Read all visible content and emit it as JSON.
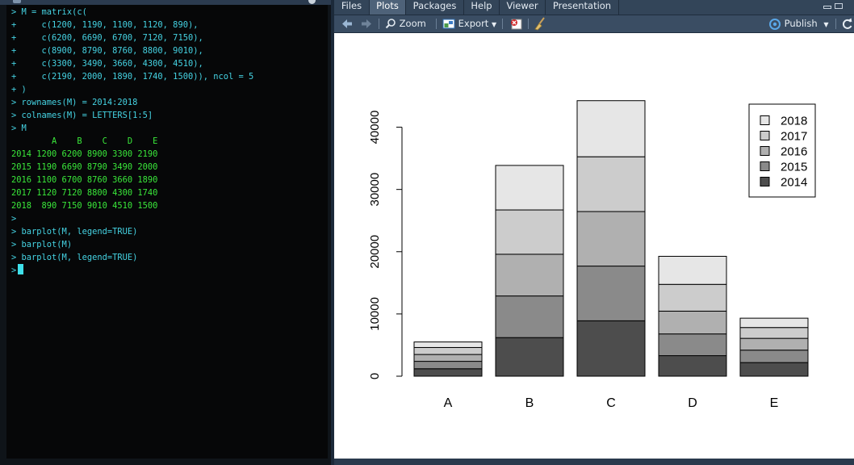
{
  "console": {
    "lines": [
      {
        "kind": "cmd",
        "text": "> M = matrix(c("
      },
      {
        "kind": "cmd",
        "text": "+     c(1200, 1190, 1100, 1120, 890),"
      },
      {
        "kind": "cmd",
        "text": "+     c(6200, 6690, 6700, 7120, 7150),"
      },
      {
        "kind": "cmd",
        "text": "+     c(8900, 8790, 8760, 8800, 9010),"
      },
      {
        "kind": "cmd",
        "text": "+     c(3300, 3490, 3660, 4300, 4510),"
      },
      {
        "kind": "cmd",
        "text": "+     c(2190, 2000, 1890, 1740, 1500)), ncol = 5"
      },
      {
        "kind": "cmd",
        "text": "+ )"
      },
      {
        "kind": "cmd",
        "text": "> rownames(M) = 2014:2018"
      },
      {
        "kind": "cmd",
        "text": "> colnames(M) = LETTERS[1:5]"
      },
      {
        "kind": "cmd",
        "text": "> M"
      },
      {
        "kind": "out",
        "text": "        A    B    C    D    E"
      },
      {
        "kind": "out",
        "text": "2014 1200 6200 8900 3300 2190"
      },
      {
        "kind": "out",
        "text": "2015 1190 6690 8790 3490 2000"
      },
      {
        "kind": "out",
        "text": "2016 1100 6700 8760 3660 1890"
      },
      {
        "kind": "out",
        "text": "2017 1120 7120 8800 4300 1740"
      },
      {
        "kind": "out",
        "text": "2018  890 7150 9010 4510 1500"
      },
      {
        "kind": "cmd",
        "text": ">"
      },
      {
        "kind": "cmd",
        "text": "> barplot(M, legend=TRUE)"
      },
      {
        "kind": "cmd",
        "text": "> barplot(M)"
      },
      {
        "kind": "cmd",
        "text": "> barplot(M, legend=TRUE)"
      }
    ],
    "prompt": ">"
  },
  "tabs": [
    "Files",
    "Plots",
    "Packages",
    "Help",
    "Viewer",
    "Presentation"
  ],
  "active_tab": "Plots",
  "toolbar": {
    "zoom_label": "Zoom",
    "export_label": "Export",
    "publish_label": "Publish"
  },
  "colors": {
    "console_bg": "#060708",
    "console_cmd": "#45d3e3",
    "console_out": "#3ae83a",
    "series": [
      "#4d4d4d",
      "#8a8a8a",
      "#b0b0b0",
      "#cccccc",
      "#e6e6e6"
    ]
  },
  "chart_data": {
    "type": "bar",
    "stacked": true,
    "categories": [
      "A",
      "B",
      "C",
      "D",
      "E"
    ],
    "series": [
      {
        "name": "2014",
        "values": [
          1200,
          6200,
          8900,
          3300,
          2190
        ]
      },
      {
        "name": "2015",
        "values": [
          1190,
          6690,
          8790,
          3490,
          2000
        ]
      },
      {
        "name": "2016",
        "values": [
          1100,
          6700,
          8760,
          3660,
          1890
        ]
      },
      {
        "name": "2017",
        "values": [
          1120,
          7120,
          8800,
          4300,
          1740
        ]
      },
      {
        "name": "2018",
        "values": [
          890,
          7150,
          9010,
          4510,
          1500
        ]
      }
    ],
    "yticks": [
      0,
      10000,
      20000,
      30000,
      40000
    ],
    "ylim": [
      0,
      45000
    ],
    "legend_position": "top-right",
    "title": "",
    "xlabel": "",
    "ylabel": ""
  }
}
